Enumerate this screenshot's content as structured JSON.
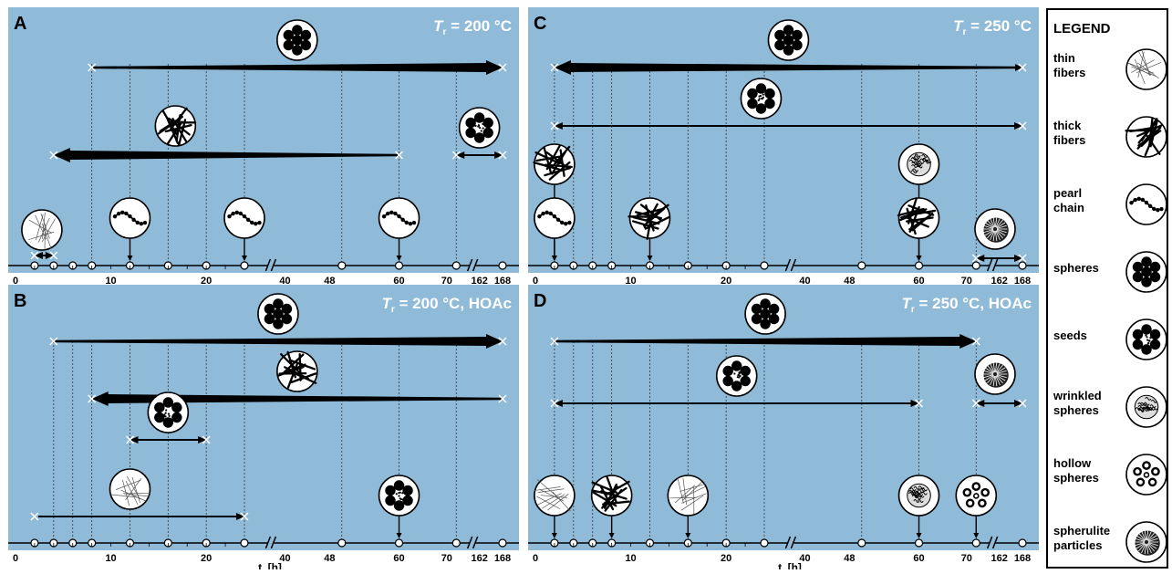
{
  "colors": {
    "panel_bg": "#8fbbd9",
    "line": "#000000",
    "marker": "#ffffff"
  },
  "axis": {
    "tick_labels": [
      "0",
      "10",
      "20",
      "40",
      "48",
      "60",
      "70",
      "162",
      "168"
    ],
    "xlabel_main": "t",
    "xlabel_sub": "r",
    "xlabel_unit": " [h]"
  },
  "legend": {
    "title": "LEGEND",
    "items": [
      {
        "icon": "thin-fibers",
        "lines": [
          "thin",
          "fibers"
        ]
      },
      {
        "icon": "thick-fibers",
        "lines": [
          "thick",
          "fibers"
        ]
      },
      {
        "icon": "pearl-chain",
        "lines": [
          "pearl",
          "chain"
        ]
      },
      {
        "icon": "spheres",
        "lines": [
          "spheres"
        ]
      },
      {
        "icon": "seeds",
        "lines": [
          "seeds"
        ]
      },
      {
        "icon": "wrinkled-spheres",
        "lines": [
          "wrinkled",
          "spheres"
        ]
      },
      {
        "icon": "hollow-spheres",
        "lines": [
          "hollow",
          "spheres"
        ]
      },
      {
        "icon": "spherulite-particles",
        "lines": [
          "spherulite",
          "particles"
        ]
      }
    ]
  },
  "panels": [
    {
      "id": "A",
      "letter": "A",
      "cond_T": "T",
      "cond_sub": "r",
      "cond_rest": " = 200 °C",
      "samples": [
        2,
        4,
        6,
        8,
        12,
        16,
        20,
        24,
        48,
        60,
        72,
        168
      ],
      "dashed": [
        8,
        12,
        16,
        20,
        24,
        48,
        60,
        72
      ],
      "ranges": [
        {
          "from": 8,
          "to": 168,
          "row": 0,
          "arrow": "end",
          "thick": true,
          "icon": "spheres"
        },
        {
          "from": 4,
          "to": 60,
          "row": 1,
          "arrow": "start",
          "thick": true,
          "icon": "thick-fibers"
        },
        {
          "from": 72,
          "to": 168,
          "row": 1,
          "arrow": "both",
          "thick": false,
          "icon": "seeds"
        },
        {
          "from": 2,
          "to": 4,
          "row": 2,
          "arrow": "both",
          "thick": false,
          "icon": "thin-fibers"
        }
      ],
      "point_icons": [
        {
          "t": 12,
          "icon": "pearl-chain"
        },
        {
          "t": 24,
          "icon": "pearl-chain"
        },
        {
          "t": 60,
          "icon": "pearl-chain"
        }
      ]
    },
    {
      "id": "B",
      "letter": "B",
      "cond_T": "T",
      "cond_sub": "r",
      "cond_rest": " = 200 °C, HOAc",
      "samples": [
        2,
        4,
        6,
        8,
        12,
        16,
        20,
        24,
        48,
        60,
        72,
        168
      ],
      "dashed": [
        4,
        6,
        8,
        12,
        16,
        20,
        24,
        48,
        60,
        72
      ],
      "ranges": [
        {
          "from": 4,
          "to": 168,
          "row": 0,
          "arrow": "end",
          "thick": true,
          "icon": "spheres"
        },
        {
          "from": 8,
          "to": 168,
          "row": 1,
          "arrow": "start",
          "thick": true,
          "icon": "thick-fibers"
        },
        {
          "from": 12,
          "to": 20,
          "row": 2,
          "arrow": "both",
          "thick": false,
          "icon": "seeds"
        },
        {
          "from": 2,
          "to": 24,
          "row": 3,
          "arrow": "end",
          "thick": false,
          "icon": "thin-fibers"
        }
      ],
      "point_icons": [
        {
          "t": 60,
          "icon": "seeds"
        }
      ]
    },
    {
      "id": "C",
      "letter": "C",
      "cond_T": "T",
      "cond_sub": "r",
      "cond_rest": " = 250 °C",
      "samples": [
        2,
        4,
        6,
        8,
        12,
        16,
        20,
        24,
        48,
        60,
        72,
        168
      ],
      "dashed": [
        2,
        4,
        6,
        8,
        12,
        16,
        20,
        24,
        48,
        60,
        72
      ],
      "ranges": [
        {
          "from": 2,
          "to": 168,
          "row": 0,
          "arrow": "both",
          "thick": true,
          "icon": "spheres"
        },
        {
          "from": 2,
          "to": 168,
          "row": 1,
          "arrow": "both",
          "thick": false,
          "icon": "seeds"
        },
        {
          "from": 72,
          "to": 168,
          "row": 3,
          "arrow": "both",
          "thick": false,
          "icon": "spherulite-particles"
        }
      ],
      "point_icons": [
        {
          "t": 2,
          "icon": "thick-fibers",
          "row": 2
        },
        {
          "t": 2,
          "icon": "pearl-chain",
          "row": 3
        },
        {
          "t": 12,
          "icon": "thick-fibers",
          "row": 3
        },
        {
          "t": 60,
          "icon": "wrinkled-spheres",
          "row": 2
        },
        {
          "t": 60,
          "icon": "thick-fibers",
          "row": 3
        }
      ]
    },
    {
      "id": "D",
      "letter": "D",
      "cond_T": "T",
      "cond_sub": "r",
      "cond_rest": " = 250 °C, HOAc",
      "samples": [
        2,
        4,
        6,
        8,
        12,
        16,
        20,
        24,
        48,
        60,
        72,
        168
      ],
      "dashed": [
        2,
        4,
        6,
        8,
        12,
        16,
        20,
        24,
        48,
        60,
        72
      ],
      "ranges": [
        {
          "from": 2,
          "to": 72,
          "row": 0,
          "arrow": "end",
          "thick": true,
          "icon": "spheres"
        },
        {
          "from": 2,
          "to": 60,
          "row": 1,
          "arrow": "both",
          "thick": false,
          "icon": "seeds"
        },
        {
          "from": 72,
          "to": 168,
          "row": 1,
          "arrow": "both",
          "thick": false,
          "icon": "spherulite-particles"
        }
      ],
      "point_icons": [
        {
          "t": 2,
          "icon": "thin-fibers"
        },
        {
          "t": 8,
          "icon": "thick-fibers"
        },
        {
          "t": 16,
          "icon": "thin-fibers"
        },
        {
          "t": 60,
          "icon": "wrinkled-spheres"
        },
        {
          "t": 72,
          "icon": "hollow-spheres"
        }
      ]
    }
  ]
}
